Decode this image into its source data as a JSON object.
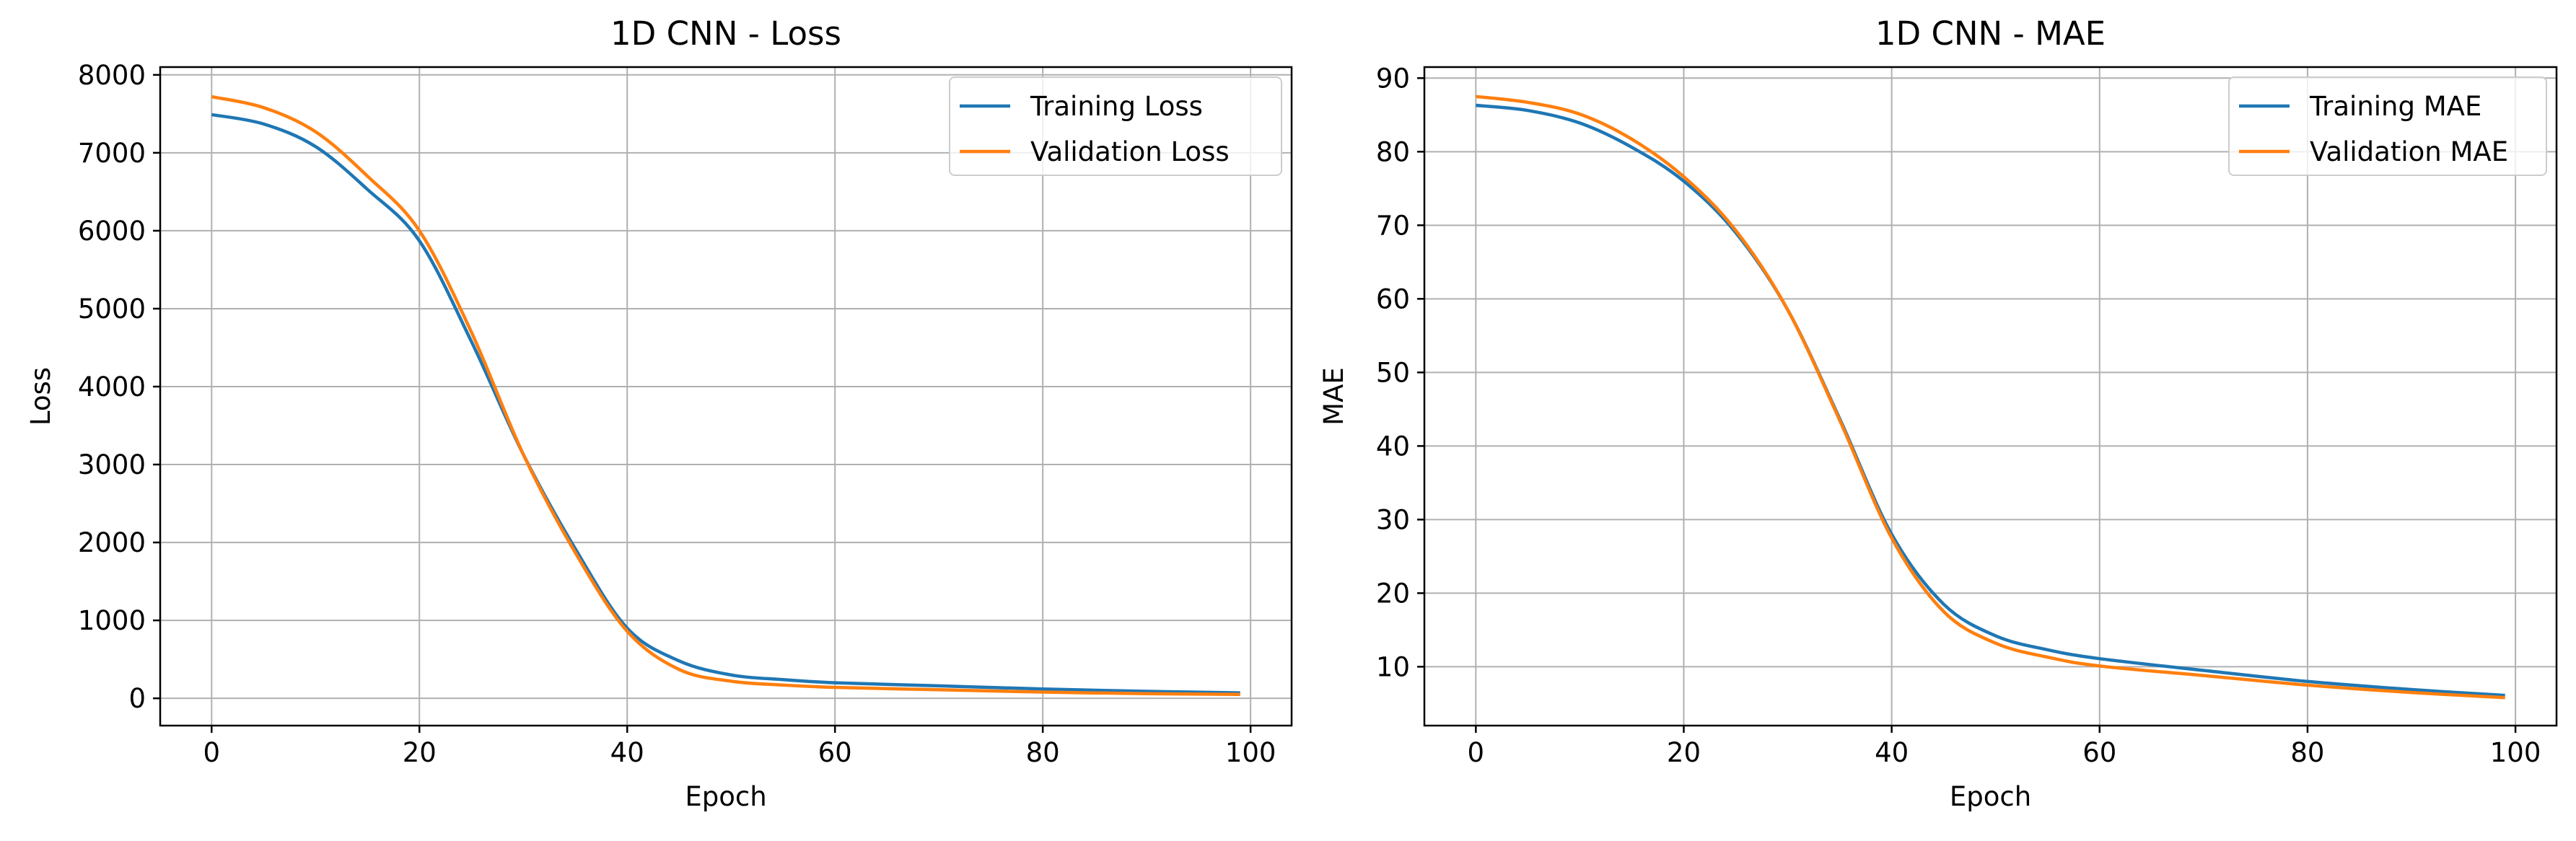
{
  "chart_data": [
    {
      "type": "line",
      "title": "1D CNN - Loss",
      "xlabel": "Epoch",
      "ylabel": "Loss",
      "xlim": [
        -4.95,
        103.95
      ],
      "ylim": [
        -350,
        8100
      ],
      "xticks": [
        0,
        20,
        40,
        60,
        80,
        100
      ],
      "yticks": [
        0,
        1000,
        2000,
        3000,
        4000,
        5000,
        6000,
        7000,
        8000
      ],
      "grid": true,
      "legend_position": "upper right",
      "series": [
        {
          "name": "Training Loss",
          "color": "#1f77b4",
          "x": [
            0,
            5,
            10,
            15,
            20,
            25,
            30,
            35,
            40,
            45,
            50,
            55,
            60,
            70,
            80,
            90,
            99
          ],
          "y": [
            7490,
            7370,
            7080,
            6530,
            5870,
            4580,
            3130,
            1920,
            900,
            480,
            300,
            240,
            200,
            160,
            120,
            90,
            70
          ]
        },
        {
          "name": "Validation Loss",
          "color": "#ff7f0e",
          "x": [
            0,
            5,
            10,
            15,
            20,
            25,
            30,
            35,
            40,
            45,
            50,
            55,
            60,
            70,
            80,
            90,
            99
          ],
          "y": [
            7720,
            7580,
            7270,
            6700,
            6000,
            4700,
            3130,
            1870,
            860,
            370,
            220,
            170,
            140,
            110,
            80,
            60,
            50
          ]
        }
      ]
    },
    {
      "type": "line",
      "title": "1D CNN - MAE",
      "xlabel": "Epoch",
      "ylabel": "MAE",
      "xlim": [
        -4.95,
        103.95
      ],
      "ylim": [
        2,
        91.5
      ],
      "xticks": [
        0,
        20,
        40,
        60,
        80,
        100
      ],
      "yticks": [
        10,
        20,
        30,
        40,
        50,
        60,
        70,
        80,
        90
      ],
      "grid": true,
      "legend_position": "upper right",
      "series": [
        {
          "name": "Training MAE",
          "color": "#1f77b4",
          "x": [
            0,
            5,
            10,
            15,
            20,
            25,
            30,
            35,
            40,
            45,
            50,
            55,
            60,
            70,
            80,
            90,
            99
          ],
          "y": [
            86.3,
            85.6,
            83.9,
            80.6,
            76.0,
            69.0,
            58.5,
            43.7,
            28.0,
            18.5,
            14.2,
            12.3,
            11.1,
            9.5,
            8.0,
            6.9,
            6.1
          ]
        },
        {
          "name": "Validation MAE",
          "color": "#ff7f0e",
          "x": [
            0,
            5,
            10,
            15,
            20,
            25,
            30,
            35,
            40,
            45,
            50,
            55,
            60,
            70,
            80,
            90,
            99
          ],
          "y": [
            87.5,
            86.7,
            85.1,
            81.7,
            76.6,
            69.3,
            58.5,
            43.5,
            27.5,
            17.5,
            13.2,
            11.3,
            10.1,
            8.8,
            7.5,
            6.5,
            5.8
          ]
        }
      ]
    }
  ]
}
